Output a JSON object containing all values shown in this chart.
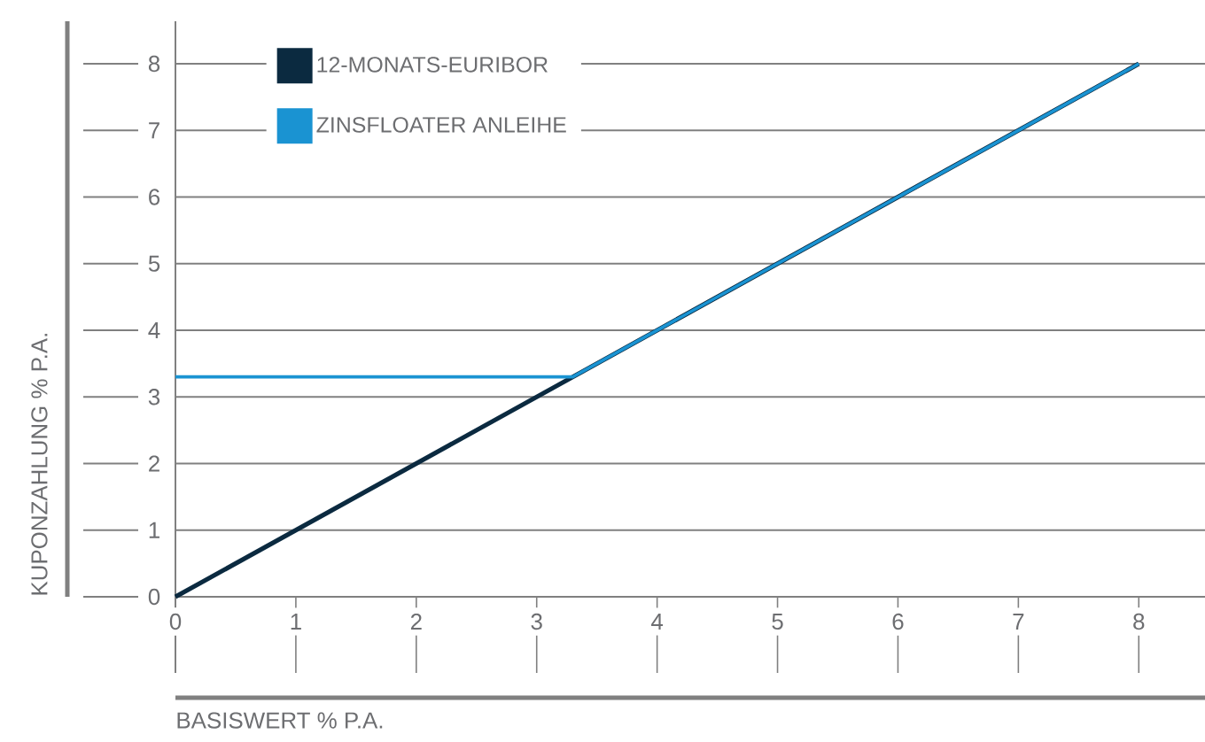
{
  "chart_data": {
    "type": "line",
    "xlabel": "BASISWERT % P.A.",
    "ylabel": "KUPONZAHLUNG % P.A.",
    "series": [
      {
        "name": "12-MONATS-EURIBOR",
        "color": "#0b2a40",
        "x": [
          0,
          8
        ],
        "values": [
          0,
          8
        ]
      },
      {
        "name": "ZINSFLOATER ANLEIHE",
        "color": "#1a93d2",
        "x": [
          0,
          3.3,
          8
        ],
        "values": [
          3.3,
          3.3,
          8
        ]
      }
    ],
    "xlim": [
      0,
      8.55
    ],
    "ylim": [
      0,
      8
    ],
    "xticks": [
      0,
      1,
      2,
      3,
      4,
      5,
      6,
      7,
      8
    ],
    "yticks": [
      0,
      1,
      2,
      3,
      4,
      5,
      6,
      7,
      8
    ],
    "grid": "y",
    "legend": "top left"
  }
}
